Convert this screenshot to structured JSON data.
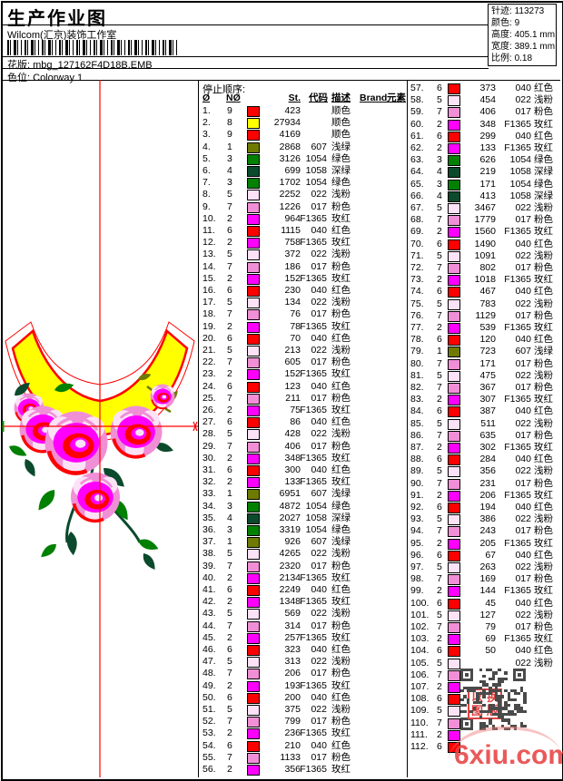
{
  "header": {
    "title": "生产作业图",
    "studio": "Wilcom(汇京)装饰工作室",
    "pattern_label": "花版:",
    "pattern_value": "mbg_127162F4D18B.EMB",
    "colorway_label": "色位:",
    "colorway_value": "Colorway 1",
    "info": [
      {
        "label": "针迹:",
        "value": "113273"
      },
      {
        "label": "颜色:",
        "value": "9"
      },
      {
        "label": "高度:",
        "value": "405.1 mm"
      },
      {
        "label": "宽度:",
        "value": "389.1 mm"
      },
      {
        "label": "比例:",
        "value": "0.18"
      }
    ]
  },
  "table": {
    "section_title": "停止顺序:",
    "columns": [
      "Ø",
      "NØ",
      "St.",
      "代码",
      "描述",
      "Brand",
      "元素"
    ],
    "needle_colors": {
      "1": "#6e7a00",
      "2": "#ff00ff",
      "3": "#028002",
      "4": "#0b4a2c",
      "5": "#fce2f7",
      "6": "#ff0000",
      "7": "#f08fd5",
      "8": "#ffff00",
      "9": "#ff0000"
    },
    "rows": [
      {
        "i": 1,
        "n": 9,
        "st": "423",
        "code": "",
        "desc": "顺色"
      },
      {
        "i": 2,
        "n": 8,
        "st": "27934",
        "code": "",
        "desc": "顺色"
      },
      {
        "i": 3,
        "n": 9,
        "st": "4169",
        "code": "",
        "desc": "顺色"
      },
      {
        "i": 4,
        "n": 1,
        "st": "2868",
        "code": "607",
        "desc": "浅绿"
      },
      {
        "i": 5,
        "n": 3,
        "st": "3126",
        "code": "1054",
        "desc": "绿色"
      },
      {
        "i": 6,
        "n": 4,
        "st": "699",
        "code": "1058",
        "desc": "深绿"
      },
      {
        "i": 7,
        "n": 3,
        "st": "1702",
        "code": "1054",
        "desc": "绿色"
      },
      {
        "i": 8,
        "n": 5,
        "st": "2252",
        "code": "022",
        "desc": "浅粉"
      },
      {
        "i": 9,
        "n": 7,
        "st": "1226",
        "code": "017",
        "desc": "粉色"
      },
      {
        "i": 10,
        "n": 2,
        "st": "964",
        "code": "F1365",
        "desc": "玫红"
      },
      {
        "i": 11,
        "n": 6,
        "st": "1115",
        "code": "040",
        "desc": "红色"
      },
      {
        "i": 12,
        "n": 2,
        "st": "758",
        "code": "F1365",
        "desc": "玫红"
      },
      {
        "i": 13,
        "n": 5,
        "st": "372",
        "code": "022",
        "desc": "浅粉"
      },
      {
        "i": 14,
        "n": 7,
        "st": "186",
        "code": "017",
        "desc": "粉色"
      },
      {
        "i": 15,
        "n": 2,
        "st": "152",
        "code": "F1365",
        "desc": "玫红"
      },
      {
        "i": 16,
        "n": 6,
        "st": "230",
        "code": "040",
        "desc": "红色"
      },
      {
        "i": 17,
        "n": 5,
        "st": "134",
        "code": "022",
        "desc": "浅粉"
      },
      {
        "i": 18,
        "n": 7,
        "st": "76",
        "code": "017",
        "desc": "粉色"
      },
      {
        "i": 19,
        "n": 2,
        "st": "78",
        "code": "F1365",
        "desc": "玫红"
      },
      {
        "i": 20,
        "n": 6,
        "st": "70",
        "code": "040",
        "desc": "红色"
      },
      {
        "i": 21,
        "n": 5,
        "st": "213",
        "code": "022",
        "desc": "浅粉"
      },
      {
        "i": 22,
        "n": 7,
        "st": "605",
        "code": "017",
        "desc": "粉色"
      },
      {
        "i": 23,
        "n": 2,
        "st": "152",
        "code": "F1365",
        "desc": "玫红"
      },
      {
        "i": 24,
        "n": 6,
        "st": "123",
        "code": "040",
        "desc": "红色"
      },
      {
        "i": 25,
        "n": 7,
        "st": "211",
        "code": "017",
        "desc": "粉色"
      },
      {
        "i": 26,
        "n": 2,
        "st": "75",
        "code": "F1365",
        "desc": "玫红"
      },
      {
        "i": 27,
        "n": 6,
        "st": "86",
        "code": "040",
        "desc": "红色"
      },
      {
        "i": 28,
        "n": 5,
        "st": "428",
        "code": "022",
        "desc": "浅粉"
      },
      {
        "i": 29,
        "n": 7,
        "st": "406",
        "code": "017",
        "desc": "粉色"
      },
      {
        "i": 30,
        "n": 2,
        "st": "348",
        "code": "F1365",
        "desc": "玫红"
      },
      {
        "i": 31,
        "n": 6,
        "st": "300",
        "code": "040",
        "desc": "红色"
      },
      {
        "i": 32,
        "n": 2,
        "st": "133",
        "code": "F1365",
        "desc": "玫红"
      },
      {
        "i": 33,
        "n": 1,
        "st": "6951",
        "code": "607",
        "desc": "浅绿"
      },
      {
        "i": 34,
        "n": 3,
        "st": "4872",
        "code": "1054",
        "desc": "绿色"
      },
      {
        "i": 35,
        "n": 4,
        "st": "2027",
        "code": "1058",
        "desc": "深绿"
      },
      {
        "i": 36,
        "n": 3,
        "st": "3319",
        "code": "1054",
        "desc": "绿色"
      },
      {
        "i": 37,
        "n": 1,
        "st": "926",
        "code": "607",
        "desc": "浅绿"
      },
      {
        "i": 38,
        "n": 5,
        "st": "4265",
        "code": "022",
        "desc": "浅粉"
      },
      {
        "i": 39,
        "n": 7,
        "st": "2320",
        "code": "017",
        "desc": "粉色"
      },
      {
        "i": 40,
        "n": 2,
        "st": "2134",
        "code": "F1365",
        "desc": "玫红"
      },
      {
        "i": 41,
        "n": 6,
        "st": "2249",
        "code": "040",
        "desc": "红色"
      },
      {
        "i": 42,
        "n": 2,
        "st": "1348",
        "code": "F1365",
        "desc": "玫红"
      },
      {
        "i": 43,
        "n": 5,
        "st": "569",
        "code": "022",
        "desc": "浅粉"
      },
      {
        "i": 44,
        "n": 7,
        "st": "314",
        "code": "017",
        "desc": "粉色"
      },
      {
        "i": 45,
        "n": 2,
        "st": "257",
        "code": "F1365",
        "desc": "玫红"
      },
      {
        "i": 46,
        "n": 6,
        "st": "323",
        "code": "040",
        "desc": "红色"
      },
      {
        "i": 47,
        "n": 5,
        "st": "313",
        "code": "022",
        "desc": "浅粉"
      },
      {
        "i": 48,
        "n": 7,
        "st": "206",
        "code": "017",
        "desc": "粉色"
      },
      {
        "i": 49,
        "n": 2,
        "st": "193",
        "code": "F1365",
        "desc": "玫红"
      },
      {
        "i": 50,
        "n": 6,
        "st": "200",
        "code": "040",
        "desc": "红色"
      },
      {
        "i": 51,
        "n": 5,
        "st": "375",
        "code": "022",
        "desc": "浅粉"
      },
      {
        "i": 52,
        "n": 7,
        "st": "799",
        "code": "017",
        "desc": "粉色"
      },
      {
        "i": 53,
        "n": 2,
        "st": "236",
        "code": "F1365",
        "desc": "玫红"
      },
      {
        "i": 54,
        "n": 6,
        "st": "210",
        "code": "040",
        "desc": "红色"
      },
      {
        "i": 55,
        "n": 7,
        "st": "1133",
        "code": "017",
        "desc": "粉色"
      },
      {
        "i": 56,
        "n": 2,
        "st": "356",
        "code": "F1365",
        "desc": "玫红"
      },
      {
        "i": 57,
        "n": 6,
        "st": "373",
        "code": "040",
        "desc": "红色"
      },
      {
        "i": 58,
        "n": 5,
        "st": "454",
        "code": "022",
        "desc": "浅粉"
      },
      {
        "i": 59,
        "n": 7,
        "st": "406",
        "code": "017",
        "desc": "粉色"
      },
      {
        "i": 60,
        "n": 2,
        "st": "348",
        "code": "F1365",
        "desc": "玫红"
      },
      {
        "i": 61,
        "n": 6,
        "st": "299",
        "code": "040",
        "desc": "红色"
      },
      {
        "i": 62,
        "n": 2,
        "st": "133",
        "code": "F1365",
        "desc": "玫红"
      },
      {
        "i": 63,
        "n": 3,
        "st": "626",
        "code": "1054",
        "desc": "绿色"
      },
      {
        "i": 64,
        "n": 4,
        "st": "219",
        "code": "1058",
        "desc": "深绿"
      },
      {
        "i": 65,
        "n": 3,
        "st": "171",
        "code": "1054",
        "desc": "绿色"
      },
      {
        "i": 66,
        "n": 4,
        "st": "413",
        "code": "1058",
        "desc": "深绿"
      },
      {
        "i": 67,
        "n": 5,
        "st": "3467",
        "code": "022",
        "desc": "浅粉"
      },
      {
        "i": 68,
        "n": 7,
        "st": "1779",
        "code": "017",
        "desc": "粉色"
      },
      {
        "i": 69,
        "n": 2,
        "st": "1560",
        "code": "F1365",
        "desc": "玫红"
      },
      {
        "i": 70,
        "n": 6,
        "st": "1490",
        "code": "040",
        "desc": "红色"
      },
      {
        "i": 71,
        "n": 5,
        "st": "1091",
        "code": "022",
        "desc": "浅粉"
      },
      {
        "i": 72,
        "n": 7,
        "st": "802",
        "code": "017",
        "desc": "粉色"
      },
      {
        "i": 73,
        "n": 2,
        "st": "1018",
        "code": "F1365",
        "desc": "玫红"
      },
      {
        "i": 74,
        "n": 6,
        "st": "467",
        "code": "040",
        "desc": "红色"
      },
      {
        "i": 75,
        "n": 5,
        "st": "783",
        "code": "022",
        "desc": "浅粉"
      },
      {
        "i": 76,
        "n": 7,
        "st": "1129",
        "code": "017",
        "desc": "粉色"
      },
      {
        "i": 77,
        "n": 2,
        "st": "539",
        "code": "F1365",
        "desc": "玫红"
      },
      {
        "i": 78,
        "n": 6,
        "st": "120",
        "code": "040",
        "desc": "红色"
      },
      {
        "i": 79,
        "n": 1,
        "st": "723",
        "code": "607",
        "desc": "浅绿"
      },
      {
        "i": 80,
        "n": 7,
        "st": "171",
        "code": "017",
        "desc": "粉色"
      },
      {
        "i": 81,
        "n": 5,
        "st": "475",
        "code": "022",
        "desc": "浅粉"
      },
      {
        "i": 82,
        "n": 7,
        "st": "367",
        "code": "017",
        "desc": "粉色"
      },
      {
        "i": 83,
        "n": 2,
        "st": "307",
        "code": "F1365",
        "desc": "玫红"
      },
      {
        "i": 84,
        "n": 6,
        "st": "387",
        "code": "040",
        "desc": "红色"
      },
      {
        "i": 85,
        "n": 5,
        "st": "511",
        "code": "022",
        "desc": "浅粉"
      },
      {
        "i": 86,
        "n": 7,
        "st": "635",
        "code": "017",
        "desc": "粉色"
      },
      {
        "i": 87,
        "n": 2,
        "st": "302",
        "code": "F1365",
        "desc": "玫红"
      },
      {
        "i": 88,
        "n": 6,
        "st": "284",
        "code": "040",
        "desc": "红色"
      },
      {
        "i": 89,
        "n": 5,
        "st": "356",
        "code": "022",
        "desc": "浅粉"
      },
      {
        "i": 90,
        "n": 7,
        "st": "231",
        "code": "017",
        "desc": "粉色"
      },
      {
        "i": 91,
        "n": 2,
        "st": "206",
        "code": "F1365",
        "desc": "玫红"
      },
      {
        "i": 92,
        "n": 6,
        "st": "194",
        "code": "040",
        "desc": "红色"
      },
      {
        "i": 93,
        "n": 5,
        "st": "386",
        "code": "022",
        "desc": "浅粉"
      },
      {
        "i": 94,
        "n": 7,
        "st": "243",
        "code": "017",
        "desc": "粉色"
      },
      {
        "i": 95,
        "n": 2,
        "st": "205",
        "code": "F1365",
        "desc": "玫红"
      },
      {
        "i": 96,
        "n": 6,
        "st": "67",
        "code": "040",
        "desc": "红色"
      },
      {
        "i": 97,
        "n": 5,
        "st": "263",
        "code": "022",
        "desc": "浅粉"
      },
      {
        "i": 98,
        "n": 7,
        "st": "169",
        "code": "017",
        "desc": "粉色"
      },
      {
        "i": 99,
        "n": 2,
        "st": "144",
        "code": "F1365",
        "desc": "玫红"
      },
      {
        "i": 100,
        "n": 6,
        "st": "45",
        "code": "040",
        "desc": "红色"
      },
      {
        "i": 101,
        "n": 5,
        "st": "127",
        "code": "022",
        "desc": "浅粉"
      },
      {
        "i": 102,
        "n": 7,
        "st": "79",
        "code": "017",
        "desc": "粉色"
      },
      {
        "i": 103,
        "n": 2,
        "st": "69",
        "code": "F1365",
        "desc": "玫红"
      },
      {
        "i": 104,
        "n": 6,
        "st": "50",
        "code": "040",
        "desc": "红色"
      },
      {
        "i": 105,
        "n": 5,
        "st": "",
        "code": "022",
        "desc": "浅粉"
      },
      {
        "i": 106,
        "n": 7,
        "st": "",
        "code": "",
        "desc": ""
      },
      {
        "i": 107,
        "n": 2,
        "st": "",
        "code": "",
        "desc": ""
      },
      {
        "i": 108,
        "n": 6,
        "st": "",
        "code": "",
        "desc": ""
      },
      {
        "i": 109,
        "n": 5,
        "st": "",
        "code": "",
        "desc": ""
      },
      {
        "i": 110,
        "n": 7,
        "st": "",
        "code": "",
        "desc": ""
      },
      {
        "i": 111,
        "n": 2,
        "st": "",
        "code": "",
        "desc": ""
      },
      {
        "i": 112,
        "n": 6,
        "st": "",
        "code": "",
        "desc": ""
      }
    ]
  },
  "design": {
    "crosshair_color": "#ff0000",
    "band_fill": "#ffff00",
    "outline_color": "#ff0000"
  },
  "watermark": {
    "site": "6xiu.com",
    "color": "#e74242",
    "stamp": [
      "以",
      "换",
      "图",
      "版"
    ]
  }
}
